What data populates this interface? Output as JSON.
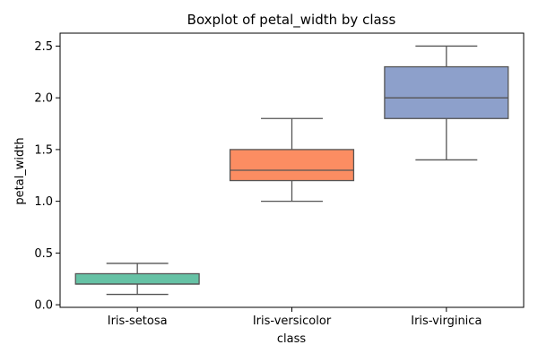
{
  "chart_data": {
    "type": "box",
    "title": "Boxplot of petal_width by class",
    "xlabel": "class",
    "ylabel": "petal_width",
    "categories": [
      "Iris-setosa",
      "Iris-versicolor",
      "Iris-virginica"
    ],
    "ylim": [
      -0.025,
      2.625
    ],
    "yticks": [
      0.0,
      0.5,
      1.0,
      1.5,
      2.0,
      2.5
    ],
    "ytick_labels": [
      "0.0",
      "0.5",
      "1.0",
      "1.5",
      "2.0",
      "2.5"
    ],
    "grid": false,
    "boxes": [
      {
        "category": "Iris-setosa",
        "whisker_low": 0.1,
        "q1": 0.2,
        "median": 0.2,
        "q3": 0.3,
        "whisker_high": 0.4,
        "color": "#66c2a5"
      },
      {
        "category": "Iris-versicolor",
        "whisker_low": 1.0,
        "q1": 1.2,
        "median": 1.3,
        "q3": 1.5,
        "whisker_high": 1.8,
        "color": "#fc8d62"
      },
      {
        "category": "Iris-virginica",
        "whisker_low": 1.4,
        "q1": 1.8,
        "median": 2.0,
        "q3": 2.3,
        "whisker_high": 2.5,
        "color": "#8da0cb"
      }
    ],
    "line_color": "#555555"
  }
}
